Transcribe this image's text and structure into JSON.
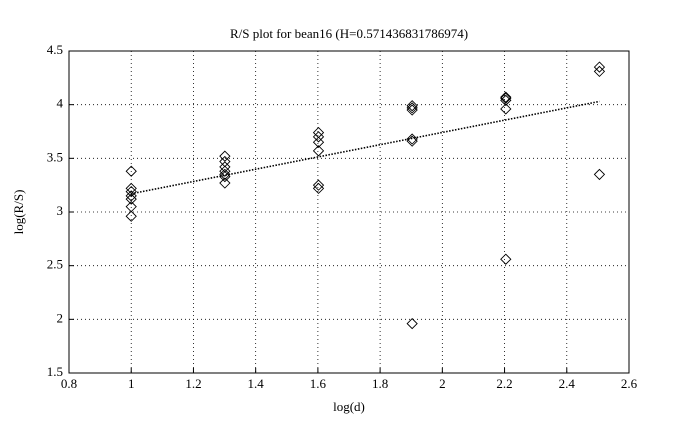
{
  "chart_data": {
    "type": "scatter",
    "title": "R/S plot for bean16 (H=0.571436831786974)",
    "xlabel": "log(d)",
    "ylabel": "log(R/S)",
    "xlim": [
      0.8,
      2.6
    ],
    "xticks": [
      0.8,
      1,
      1.2,
      1.4,
      1.6,
      1.8,
      2,
      2.2,
      2.4,
      2.6
    ],
    "ylim": [
      1.5,
      4.5
    ],
    "yticks": [
      1.5,
      2,
      2.5,
      3,
      3.5,
      4,
      4.5
    ],
    "grid": true,
    "series": [
      {
        "type": "scatter",
        "color": "#000000",
        "x": [
          1,
          1,
          1,
          1,
          1,
          1,
          1,
          1.301,
          1.301,
          1.301,
          1.301,
          1.301,
          1.301,
          1.301,
          1.602,
          1.602,
          1.602,
          1.602,
          1.602,
          1.602,
          1.903,
          1.903,
          1.903,
          1.903,
          1.903,
          1.903,
          2.204,
          2.204,
          2.204,
          2.204,
          2.204,
          2.505,
          2.505,
          2.505
        ],
        "values": [
          3.38,
          3.22,
          3.19,
          3.15,
          3.12,
          3.05,
          2.96,
          3.52,
          3.47,
          3.42,
          3.38,
          3.35,
          3.33,
          3.27,
          3.74,
          3.7,
          3.65,
          3.57,
          3.25,
          3.22,
          3.99,
          3.97,
          3.95,
          3.68,
          3.66,
          1.96,
          4.07,
          4.06,
          4.04,
          3.96,
          2.56,
          4.35,
          4.31,
          3.35
        ]
      },
      {
        "type": "line",
        "color": "#000000",
        "x": [
          1,
          2.505
        ],
        "values": [
          3.17,
          4.03
        ]
      }
    ]
  }
}
